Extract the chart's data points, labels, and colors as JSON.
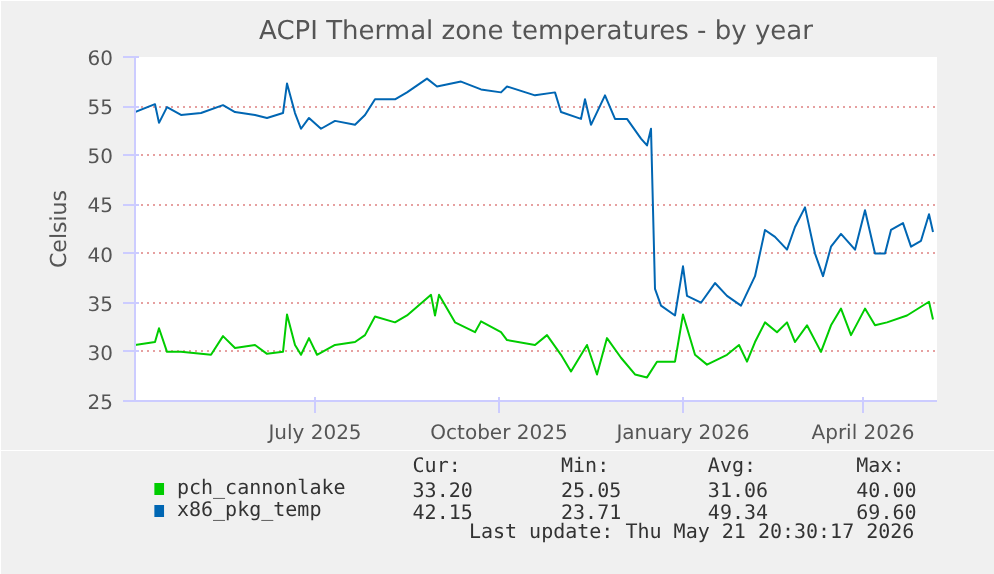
{
  "chart_data": {
    "type": "line",
    "title": "ACPI Thermal zone temperatures - by year",
    "ylabel": "Celsius",
    "xlim": [
      "2025-04-17",
      "2026-05-23"
    ],
    "xticks": [
      {
        "value": "2025-07-16",
        "label": "July 2025"
      },
      {
        "value": "2025-10-16",
        "label": "October 2025"
      },
      {
        "value": "2026-01-16",
        "label": "January 2026"
      },
      {
        "value": "2026-04-16",
        "label": "April 2026"
      }
    ],
    "ylim": [
      25,
      60
    ],
    "yticks": [
      25,
      30,
      35,
      40,
      45,
      50,
      55,
      60
    ],
    "grid": true,
    "legend": "bottom",
    "marker": "none",
    "line_style": "solid",
    "series": [
      {
        "name": "pch_cannonlake",
        "color": "#00cc00",
        "x": [
          "2025-04-17",
          "2025-04-27",
          "2025-04-29",
          "2025-05-03",
          "2025-05-10",
          "2025-05-25",
          "2025-05-31",
          "2025-06-06",
          "2025-06-16",
          "2025-06-22",
          "2025-06-30",
          "2025-07-02",
          "2025-07-06",
          "2025-07-09",
          "2025-07-13",
          "2025-07-17",
          "2025-07-26",
          "2025-08-05",
          "2025-08-10",
          "2025-08-15",
          "2025-08-25",
          "2025-08-31",
          "2025-09-12",
          "2025-09-14",
          "2025-09-16",
          "2025-09-24",
          "2025-10-04",
          "2025-10-07",
          "2025-10-17",
          "2025-10-20",
          "2025-11-03",
          "2025-11-09",
          "2025-11-16",
          "2025-11-21",
          "2025-11-29",
          "2025-12-04",
          "2025-12-09",
          "2025-12-16",
          "2025-12-23",
          "2025-12-29",
          "2026-01-03",
          "2026-01-12",
          "2026-01-16",
          "2026-01-22",
          "2026-01-28",
          "2026-02-07",
          "2026-02-13",
          "2026-02-17",
          "2026-02-21",
          "2026-02-26",
          "2026-03-04",
          "2026-03-09",
          "2026-03-13",
          "2026-03-19",
          "2026-03-26",
          "2026-03-31",
          "2026-04-05",
          "2026-04-10",
          "2026-04-17",
          "2026-04-22",
          "2026-04-28",
          "2026-05-08",
          "2026-05-19",
          "2026-05-21"
        ],
        "values": [
          30.7,
          31.0,
          32.4,
          30.0,
          30.0,
          29.7,
          31.6,
          30.4,
          30.7,
          29.8,
          30.0,
          33.8,
          30.7,
          29.7,
          31.4,
          29.7,
          30.7,
          31.0,
          31.7,
          33.6,
          33.0,
          33.7,
          35.8,
          33.7,
          35.8,
          33.0,
          32.0,
          33.1,
          32.0,
          31.2,
          30.7,
          31.7,
          29.7,
          28.0,
          30.7,
          27.7,
          31.4,
          29.4,
          27.7,
          27.4,
          29.0,
          29.0,
          33.8,
          29.7,
          28.7,
          29.7,
          30.7,
          29.0,
          31.0,
          33.0,
          32.0,
          33.0,
          31.0,
          32.7,
          30.0,
          32.7,
          34.4,
          31.7,
          34.4,
          32.7,
          33.0,
          33.7,
          35.1,
          33.3
        ]
      },
      {
        "name": "x86_pkg_temp",
        "color": "#0066b3",
        "x": [
          "2025-04-17",
          "2025-04-27",
          "2025-04-29",
          "2025-05-03",
          "2025-05-10",
          "2025-05-20",
          "2025-05-31",
          "2025-06-06",
          "2025-06-16",
          "2025-06-22",
          "2025-06-30",
          "2025-07-02",
          "2025-07-06",
          "2025-07-09",
          "2025-07-13",
          "2025-07-19",
          "2025-07-26",
          "2025-08-05",
          "2025-08-10",
          "2025-08-15",
          "2025-08-25",
          "2025-08-31",
          "2025-09-10",
          "2025-09-15",
          "2025-09-27",
          "2025-10-07",
          "2025-10-17",
          "2025-10-20",
          "2025-11-03",
          "2025-11-13",
          "2025-11-16",
          "2025-11-26",
          "2025-11-28",
          "2025-12-01",
          "2025-12-08",
          "2025-12-13",
          "2025-12-19",
          "2025-12-26",
          "2025-12-29",
          "2025-12-31",
          "2026-01-02",
          "2026-01-05",
          "2026-01-12",
          "2026-01-16",
          "2026-01-18",
          "2026-01-25",
          "2026-02-01",
          "2026-02-07",
          "2026-02-14",
          "2026-02-21",
          "2026-02-26",
          "2026-03-03",
          "2026-03-09",
          "2026-03-13",
          "2026-03-18",
          "2026-03-23",
          "2026-03-27",
          "2026-03-31",
          "2026-04-05",
          "2026-04-12",
          "2026-04-17",
          "2026-04-22",
          "2026-04-27",
          "2026-04-30",
          "2026-05-06",
          "2026-05-10",
          "2026-05-15",
          "2026-05-19",
          "2026-05-21"
        ],
        "values": [
          54.4,
          55.2,
          53.3,
          54.9,
          54.1,
          54.3,
          55.1,
          54.4,
          54.1,
          53.8,
          54.3,
          57.3,
          54.3,
          52.7,
          53.8,
          52.7,
          53.5,
          53.1,
          54.1,
          55.7,
          55.7,
          56.4,
          57.8,
          57.0,
          57.5,
          56.7,
          56.4,
          57.0,
          56.1,
          56.4,
          54.4,
          53.7,
          55.7,
          53.1,
          56.1,
          53.7,
          53.7,
          51.7,
          51.0,
          52.7,
          36.4,
          34.7,
          33.7,
          38.7,
          35.7,
          35.0,
          37.0,
          35.7,
          34.7,
          37.7,
          42.4,
          41.7,
          40.4,
          42.7,
          44.7,
          40.0,
          37.7,
          40.7,
          42.0,
          40.4,
          44.4,
          40.0,
          40.0,
          42.4,
          43.1,
          40.7,
          41.3,
          44.0,
          42.2
        ]
      }
    ],
    "annotations": [
      "Cur:",
      "Min:",
      "Avg:",
      "Max:",
      "33.20",
      "25.05",
      "31.06",
      "40.00",
      "42.15",
      "23.71",
      "49.34",
      "69.60",
      "Last update: Thu May 21 20:30:17 2026"
    ]
  }
}
